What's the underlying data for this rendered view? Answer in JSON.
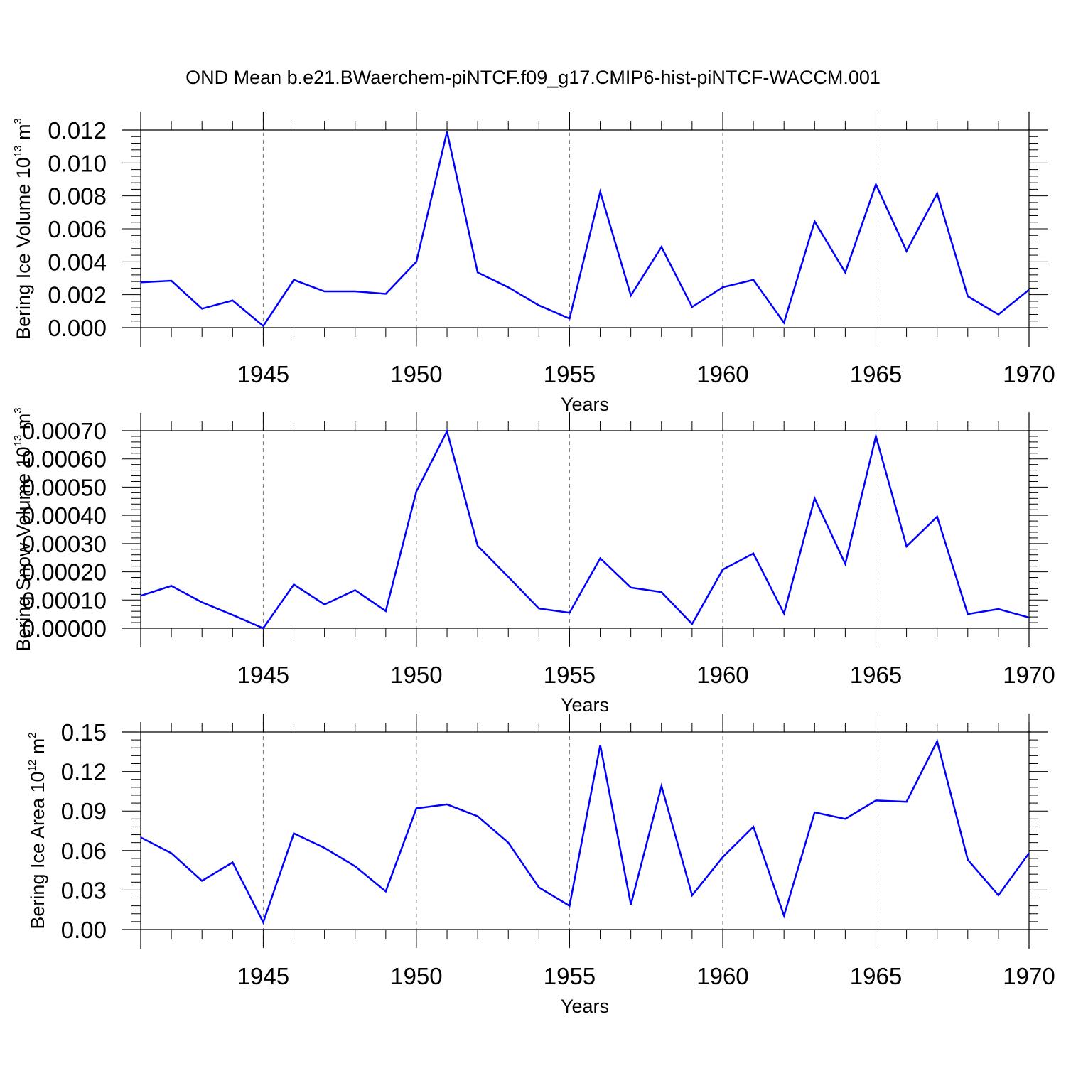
{
  "chart_data": [
    {
      "type": "line",
      "title": "OND Mean b.e21.BWaerchem-piNTCF.f09_g17.CMIP6-hist-piNTCF-WACCM.001",
      "xlabel": "Years",
      "ylabel": {
        "text": "Bering Ice Volume 10",
        "exp": "13",
        "unit": " m",
        "unit_exp": "3"
      },
      "xlim": [
        1941,
        1970
      ],
      "ylim": [
        0,
        0.012
      ],
      "xticks": [
        1945,
        1950,
        1955,
        1960,
        1965,
        1970
      ],
      "yticks": [
        "0.000",
        "0.002",
        "0.004",
        "0.006",
        "0.008",
        "0.010",
        "0.012"
      ],
      "line_color": "#0000ff",
      "grid": "vertical dashed at major x ticks",
      "x": [
        1941,
        1942,
        1943,
        1944,
        1945,
        1946,
        1947,
        1948,
        1949,
        1950,
        1951,
        1952,
        1953,
        1954,
        1955,
        1956,
        1957,
        1958,
        1959,
        1960,
        1961,
        1962,
        1963,
        1964,
        1965,
        1966,
        1967,
        1968,
        1969,
        1970
      ],
      "values": [
        0.00275,
        0.00285,
        0.00115,
        0.00165,
        0.0001,
        0.0029,
        0.0022,
        0.0022,
        0.00205,
        0.004,
        0.0119,
        0.00335,
        0.00245,
        0.00135,
        0.00055,
        0.00825,
        0.00195,
        0.0049,
        0.00125,
        0.00245,
        0.0029,
        0.0003,
        0.00645,
        0.00335,
        0.0087,
        0.00465,
        0.00815,
        0.0019,
        0.0008,
        0.0023
      ]
    },
    {
      "type": "line",
      "xlabel": "Years",
      "ylabel": {
        "text": "Bering Snow Volume 10",
        "exp": "13",
        "unit": " m",
        "unit_exp": "3"
      },
      "xlim": [
        1941,
        1970
      ],
      "ylim": [
        0,
        0.0007
      ],
      "xticks": [
        1945,
        1950,
        1955,
        1960,
        1965,
        1970
      ],
      "yticks": [
        "0.00000",
        "0.00010",
        "0.00020",
        "0.00030",
        "0.00040",
        "0.00050",
        "0.00060",
        "0.00070"
      ],
      "line_color": "#0000ff",
      "grid": "vertical dashed at major x ticks",
      "x": [
        1941,
        1942,
        1943,
        1944,
        1945,
        1946,
        1947,
        1948,
        1949,
        1950,
        1951,
        1952,
        1953,
        1954,
        1955,
        1956,
        1957,
        1958,
        1959,
        1960,
        1961,
        1962,
        1963,
        1964,
        1965,
        1966,
        1967,
        1968,
        1969,
        1970
      ],
      "values": [
        0.000115,
        0.00015,
        9.2e-05,
        4.7e-05,
        0.0,
        0.000155,
        8.4e-05,
        0.000135,
        6.1e-05,
        0.000485,
        0.000698,
        0.000292,
        0.000182,
        7e-05,
        5.5e-05,
        0.000248,
        0.000144,
        0.000128,
        1.5e-05,
        0.000208,
        0.000265,
        5.2e-05,
        0.00046,
        0.000228,
        0.00068,
        0.00029,
        0.000395,
        5e-05,
        6.8e-05,
        3.8e-05
      ]
    },
    {
      "type": "line",
      "xlabel": "Years",
      "ylabel": {
        "text": "Bering Ice Area 10",
        "exp": "12",
        "unit": " m",
        "unit_exp": "2"
      },
      "xlim": [
        1941,
        1970
      ],
      "ylim": [
        0,
        0.15
      ],
      "xticks": [
        1945,
        1950,
        1955,
        1960,
        1965,
        1970
      ],
      "yticks": [
        "0.00",
        "0.03",
        "0.06",
        "0.09",
        "0.12",
        "0.15"
      ],
      "line_color": "#0000ff",
      "grid": "vertical dashed at major x ticks",
      "x": [
        1941,
        1942,
        1943,
        1944,
        1945,
        1946,
        1947,
        1948,
        1949,
        1950,
        1951,
        1952,
        1953,
        1954,
        1955,
        1956,
        1957,
        1958,
        1959,
        1960,
        1961,
        1962,
        1963,
        1964,
        1965,
        1966,
        1967,
        1968,
        1969,
        1970
      ],
      "values": [
        0.07,
        0.058,
        0.037,
        0.051,
        0.0055,
        0.073,
        0.062,
        0.048,
        0.029,
        0.092,
        0.095,
        0.086,
        0.066,
        0.032,
        0.018,
        0.14,
        0.019,
        0.109,
        0.026,
        0.055,
        0.078,
        0.0105,
        0.089,
        0.084,
        0.098,
        0.097,
        0.143,
        0.053,
        0.026,
        0.058
      ]
    }
  ]
}
